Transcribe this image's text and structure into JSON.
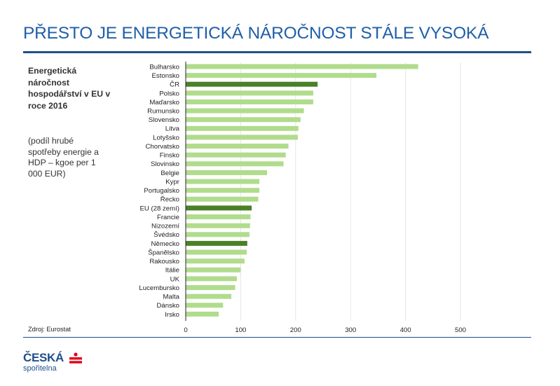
{
  "header": {
    "title": "PŘESTO JE ENERGETICKÁ NÁROČNOST STÁLE VYSOKÁ"
  },
  "side": {
    "title": "Energetická náročnost hospodářství v EU v roce 2016",
    "subtitle": "(podíl hrubé spotřeby energie a HDP – kgoe per 1 000 EUR)"
  },
  "source": "Zdroj: Eurostat",
  "logo": {
    "name": "ČESKÁ",
    "sub": "spořitelna",
    "icon": "s-logo-icon"
  },
  "colors": {
    "bar": "#b0dc8c",
    "highlight": "#4a8026",
    "title": "#1f5fa8",
    "rule": "#1f4f8c"
  },
  "chart_data": {
    "type": "bar",
    "orientation": "horizontal",
    "categories": [
      "Bulharsko",
      "Estonsko",
      "ČR",
      "Polsko",
      "Maďarsko",
      "Rumunsko",
      "Slovensko",
      "Litva",
      "Lotyšsko",
      "Chorvatsko",
      "Finsko",
      "Slovinsko",
      "Belgie",
      "Kypr",
      "Portugalsko",
      "Řecko",
      "EU (28 zemí)",
      "Francie",
      "Nizozemí",
      "Švédsko",
      "Německo",
      "Španělsko",
      "Rakousko",
      "Itálie",
      "UK",
      "Lucembursko",
      "Malta",
      "Dánsko",
      "Irsko"
    ],
    "values": [
      423,
      347,
      240,
      232,
      232,
      215,
      209,
      205,
      204,
      187,
      182,
      178,
      148,
      134,
      134,
      132,
      120,
      118,
      117,
      116,
      112,
      111,
      107,
      100,
      93,
      90,
      83,
      68,
      60
    ],
    "highlighted": [
      "ČR",
      "EU (28 zemí)",
      "Německo"
    ],
    "xlim": [
      0,
      500
    ],
    "xticks": [
      0,
      100,
      200,
      300,
      400,
      500
    ],
    "grid": true
  }
}
